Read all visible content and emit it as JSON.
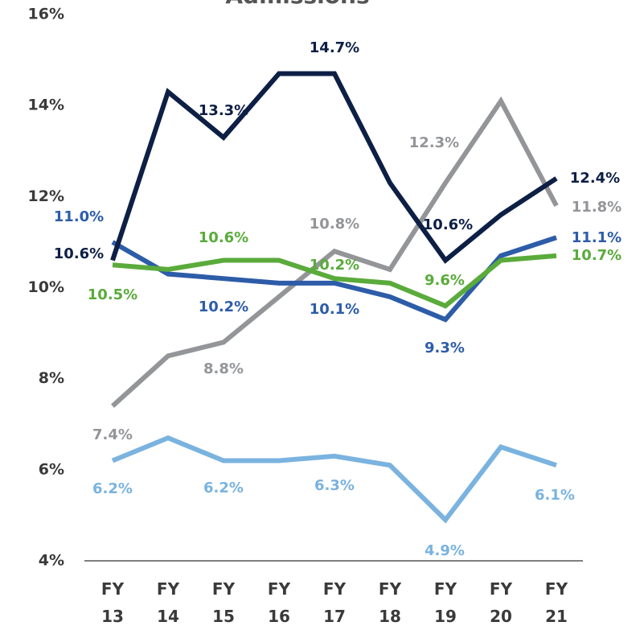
{
  "chart_data": {
    "type": "line",
    "title": "Admissions",
    "categories": [
      "FY 13",
      "FY 14",
      "FY 15",
      "FY 16",
      "FY 17",
      "FY 18",
      "FY 19",
      "FY 20",
      "FY 21"
    ],
    "ylim": [
      4,
      16
    ],
    "yticks": [
      {
        "value": 4,
        "label": "4%"
      },
      {
        "value": 6,
        "label": "6%"
      },
      {
        "value": 8,
        "label": "8%"
      },
      {
        "value": 10,
        "label": "10%"
      },
      {
        "value": 12,
        "label": "12%"
      },
      {
        "value": 14,
        "label": "14%"
      },
      {
        "value": 16,
        "label": "16%"
      }
    ],
    "grid": false,
    "series": [
      {
        "color": "#0d1f45",
        "values": [
          10.6,
          14.3,
          13.3,
          14.7,
          14.7,
          12.3,
          10.6,
          11.6,
          12.4
        ],
        "value_labels": [
          "10.6%",
          null,
          "13.3%",
          null,
          "14.7%",
          null,
          "10.6%",
          null,
          "12.4%"
        ]
      },
      {
        "color": "#939598",
        "values": [
          7.4,
          8.5,
          8.8,
          9.8,
          10.8,
          10.4,
          12.3,
          14.1,
          11.8
        ],
        "value_labels": [
          "7.4%",
          null,
          "8.8%",
          null,
          "10.8%",
          null,
          "12.3%",
          null,
          "11.8%"
        ]
      },
      {
        "color": "#2d5ca8",
        "values": [
          11.0,
          10.3,
          10.2,
          10.1,
          10.1,
          9.8,
          9.3,
          10.7,
          11.1
        ],
        "value_labels": [
          "11.0%",
          null,
          "10.2%",
          null,
          "10.1%",
          null,
          "9.3%",
          null,
          "11.1%"
        ]
      },
      {
        "color": "#5aab3b",
        "values": [
          10.5,
          10.4,
          10.6,
          10.6,
          10.2,
          10.1,
          9.6,
          10.6,
          10.7
        ],
        "value_labels": [
          "10.5%",
          null,
          "10.6%",
          null,
          "10.2%",
          null,
          "9.6%",
          null,
          "10.7%"
        ]
      },
      {
        "color": "#7ab3df",
        "values": [
          6.2,
          6.7,
          6.2,
          6.2,
          6.3,
          6.1,
          4.9,
          6.5,
          6.1
        ],
        "value_labels": [
          "6.2%",
          null,
          "6.2%",
          null,
          "6.3%",
          null,
          "4.9%",
          null,
          "6.1%"
        ]
      }
    ]
  }
}
